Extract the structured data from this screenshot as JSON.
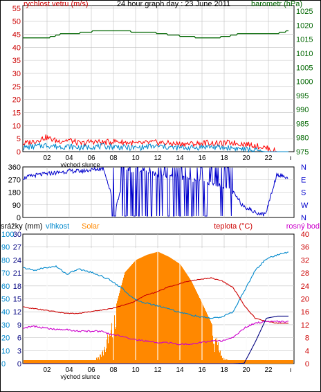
{
  "colors": {
    "wind": "#cc0000",
    "gust": "#ff0000",
    "wind_avg": "#0088cc",
    "pressure": "#006600",
    "direction": "#0000cc",
    "humidity": "#0088cc",
    "solar": "#ff8800",
    "rain": "#000080",
    "temp": "#cc0000",
    "dew": "#cc00cc",
    "grid": "#c0c0c0",
    "sunrise_line": "#ffffff"
  },
  "chart_data": [
    {
      "type": "line",
      "title": "24 hour graph day : 23 June 2011",
      "left_axis_label": "rychlost vetru (m/s)",
      "right_axis_label": "barometr (hPa)",
      "left_ticks": [
        "0",
        "5",
        "10",
        "15",
        "20",
        "25",
        "30",
        "35",
        "40",
        "45",
        "50",
        "55"
      ],
      "right_ticks": [
        "975",
        "980",
        "985",
        "990",
        "995",
        "1000",
        "1005",
        "1010",
        "1015",
        "1020",
        "1025"
      ],
      "ylim_left": [
        0,
        56
      ],
      "ylim_right": [
        975,
        1027
      ],
      "x_ticks": [
        "02",
        "04",
        "06",
        "08",
        "10",
        "12",
        "14",
        "16",
        "18",
        "20",
        "22"
      ],
      "x_label": "východ slunce",
      "series": [
        {
          "key": "pressure",
          "values": [
            1015.5,
            1015.5,
            1015.6,
            1016.8,
            1017.0,
            1017.5,
            1018.0,
            1018.0,
            1017.8,
            1017.7,
            1017.5,
            1017.0,
            1016.4,
            1016.0,
            1015.6,
            1015.5,
            1015.9,
            1016.8,
            1016.8,
            1017.2,
            1017.0,
            1018.0
          ]
        },
        {
          "key": "gust",
          "values": [
            3.0,
            4.0,
            5.5,
            4.0,
            4.5,
            3.0,
            4.0,
            3.5,
            4.0,
            3.5,
            3.0,
            3.5,
            3.5,
            3.0,
            3.0,
            3.0,
            3.5,
            3.0,
            3.5,
            3.0,
            2.5,
            1.5,
            0,
            0
          ]
        },
        {
          "key": "wind_avg",
          "values": [
            1.5,
            2.0,
            2.5,
            2.0,
            2.0,
            1.5,
            2.0,
            2.0,
            2.0,
            1.5,
            1.5,
            2.0,
            2.0,
            1.5,
            1.5,
            1.5,
            2.0,
            1.5,
            1.5,
            1.0,
            0.5,
            0,
            0,
            0
          ]
        }
      ]
    },
    {
      "type": "scatter",
      "title": "",
      "left_ticks": [
        "0",
        "90",
        "180",
        "270",
        "360"
      ],
      "right_labels": [
        "N",
        "W",
        "S",
        "E",
        "N"
      ],
      "ylim": [
        0,
        360
      ],
      "series": [
        {
          "key": "direction",
          "values": [
            280,
            300,
            310,
            320,
            330,
            330,
            340,
            350,
            60,
            340,
            330,
            320,
            300,
            290,
            280,
            260,
            250,
            230,
            200,
            90,
            40,
            20,
            310,
            280
          ]
        }
      ]
    },
    {
      "type": "line",
      "title": "",
      "labels": {
        "rain": "srážky (mm)",
        "humidity": "vlhkost",
        "solar": "Solar",
        "temp": "teplota (°C)",
        "dew": "rosný bod"
      },
      "ylim_left1": [
        0,
        30
      ],
      "ylim_left2": [
        0,
        100
      ],
      "ylim_right": [
        0,
        40
      ],
      "left_ticks_dark": [
        "0",
        "3",
        "6",
        "9",
        "12",
        "15",
        "18",
        "21",
        "24",
        "27",
        "30"
      ],
      "left_ticks_blue": [
        "0",
        "10",
        "20",
        "30",
        "40",
        "50",
        "60",
        "70",
        "80",
        "90",
        "100"
      ],
      "right_ticks": [
        "0",
        "4",
        "8",
        "12",
        "16",
        "20",
        "24",
        "28",
        "32",
        "36",
        "40"
      ],
      "x_ticks": [
        "02",
        "04",
        "06",
        "08",
        "10",
        "12",
        "14",
        "16",
        "18",
        "20",
        "22"
      ],
      "x_label": "východ slunce",
      "series": [
        {
          "key": "humidity",
          "values": [
            74,
            72,
            74,
            75,
            69,
            73,
            71,
            68,
            64,
            58,
            50,
            47,
            45,
            43,
            40,
            38,
            36,
            35,
            36,
            40,
            56,
            72,
            81,
            84,
            86
          ]
        },
        {
          "key": "temp",
          "values": [
            17.5,
            17.0,
            16.5,
            16.0,
            15.5,
            15.5,
            16.0,
            16.5,
            17.0,
            18.0,
            19.0,
            21.0,
            22.0,
            23.5,
            24.5,
            25.5,
            26.0,
            26.5,
            25.5,
            23.5,
            18.0,
            14.0,
            13.0,
            12.5,
            12.5
          ]
        },
        {
          "key": "dew",
          "values": [
            11.0,
            11.5,
            11.0,
            10.5,
            10.5,
            10.0,
            10.0,
            10.0,
            9.0,
            8.5,
            7.5,
            7.0,
            6.5,
            6.5,
            6.0,
            6.0,
            6.5,
            7.0,
            7.0,
            8.0,
            11.0,
            12.5,
            13.0,
            13.0,
            13.0
          ]
        },
        {
          "key": "rain",
          "values": [
            0,
            0,
            0,
            0,
            0,
            0,
            0,
            0,
            0,
            0,
            0,
            0,
            0,
            0,
            0,
            0,
            0,
            0,
            0,
            0,
            0.1,
            5.0,
            10.5,
            11.0,
            11.0
          ]
        },
        {
          "key": "solar",
          "values": [
            0,
            0,
            0,
            0,
            0,
            0,
            0,
            15,
            48,
            88,
            100,
            105,
            108,
            103,
            96,
            80,
            58,
            35,
            5,
            0,
            0,
            0,
            0,
            0,
            0
          ]
        }
      ]
    }
  ]
}
